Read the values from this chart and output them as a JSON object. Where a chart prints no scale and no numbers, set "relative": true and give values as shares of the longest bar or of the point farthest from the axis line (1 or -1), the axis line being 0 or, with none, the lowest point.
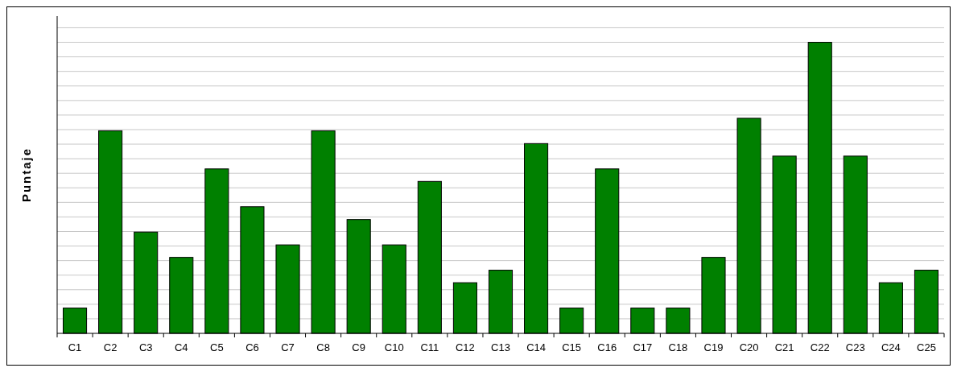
{
  "chart_data": {
    "type": "bar",
    "ylabel": "Puntaje",
    "relative": true,
    "grid": "y",
    "color": "#008000",
    "categories": [
      "C1",
      "C2",
      "C3",
      "C4",
      "C5",
      "C6",
      "C7",
      "C8",
      "C9",
      "C10",
      "C11",
      "C12",
      "C13",
      "C14",
      "C15",
      "C16",
      "C17",
      "C18",
      "C19",
      "C20",
      "C21",
      "C22",
      "C23",
      "C24",
      "C25"
    ],
    "values": [
      0.087,
      0.696,
      0.348,
      0.261,
      0.565,
      0.435,
      0.304,
      0.696,
      0.391,
      0.304,
      0.522,
      0.174,
      0.217,
      0.652,
      0.087,
      0.565,
      0.087,
      0.087,
      0.261,
      0.739,
      0.609,
      1,
      0.609,
      0.174,
      0.217
    ]
  }
}
